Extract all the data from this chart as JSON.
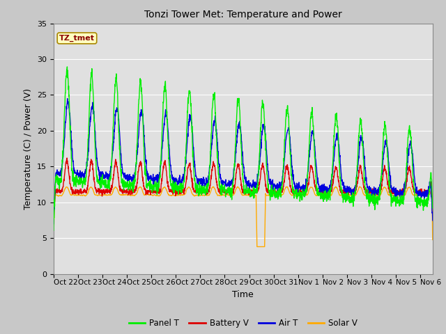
{
  "title": "Tonzi Tower Met: Temperature and Power",
  "xlabel": "Time",
  "ylabel": "Temperature (C) / Power (V)",
  "ylim": [
    0,
    35
  ],
  "yticks": [
    0,
    5,
    10,
    15,
    20,
    25,
    30,
    35
  ],
  "annotation": "TZ_tmet",
  "fig_facecolor": "#c8c8c8",
  "ax_facecolor": "#e0e0e0",
  "line_colors": {
    "panel": "#00ee00",
    "battery": "#dd0000",
    "air": "#0000dd",
    "solar": "#ffaa00"
  },
  "legend_labels": [
    "Panel T",
    "Battery V",
    "Air T",
    "Solar V"
  ],
  "x_tick_labels": [
    "Oct 22",
    "Oct 23",
    "Oct 24",
    "Oct 25",
    "Oct 26",
    "Oct 27",
    "Oct 28",
    "Oct 29",
    "Oct 30",
    "Oct 31",
    "Nov 1",
    "Nov 2",
    "Nov 3",
    "Nov 4",
    "Nov 5",
    "Nov 6"
  ],
  "n_days": 15.5
}
